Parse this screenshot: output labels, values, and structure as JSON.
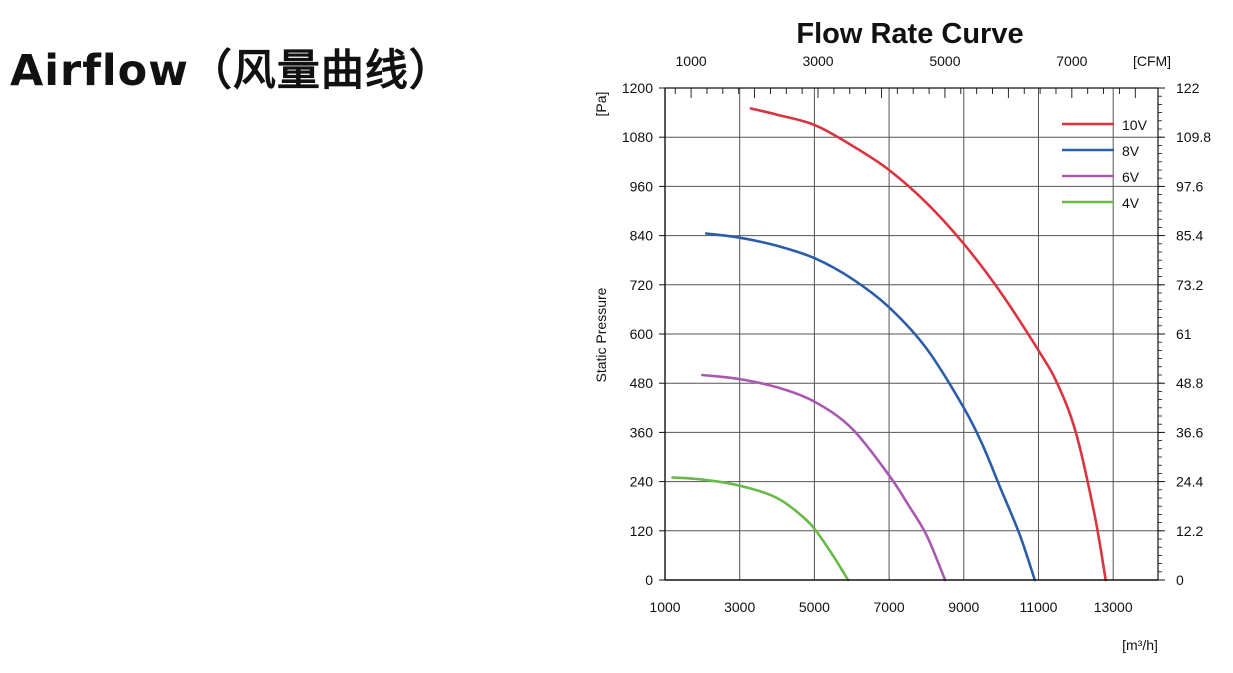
{
  "page": {
    "heading": "Airflow（风量曲线）"
  },
  "chart_data": {
    "type": "line",
    "title": "Flow Rate Curve",
    "ylabel": "Static Pressure",
    "y_unit": "[Pa]",
    "x_unit": "[m³/h]",
    "top_axis_unit": "[CFM]",
    "xlim": [
      1000,
      14200
    ],
    "ylim": [
      0,
      1200
    ],
    "x_ticks": [
      "1000",
      "3000",
      "5000",
      "7000",
      "9000",
      "11000",
      "13000"
    ],
    "y_ticks": [
      "0",
      "120",
      "240",
      "360",
      "480",
      "600",
      "720",
      "840",
      "960",
      "1080",
      "1200"
    ],
    "top_ticks": [
      "1000",
      "3000",
      "5000",
      "7000"
    ],
    "right_ticks": [
      "0",
      "12.2",
      "24.4",
      "36.6",
      "48.8",
      "61",
      "73.2",
      "85.4",
      "97.6",
      "109.8",
      "122"
    ],
    "grid": true,
    "legend_position": "top-right",
    "series": [
      {
        "name": "10V",
        "color": "#d9343f",
        "points": [
          [
            3300,
            1150
          ],
          [
            4000,
            1135
          ],
          [
            5000,
            1110
          ],
          [
            6000,
            1060
          ],
          [
            7000,
            1000
          ],
          [
            8000,
            920
          ],
          [
            9000,
            820
          ],
          [
            10000,
            700
          ],
          [
            11000,
            560
          ],
          [
            11500,
            480
          ],
          [
            12000,
            360
          ],
          [
            12500,
            160
          ],
          [
            12800,
            0
          ]
        ]
      },
      {
        "name": "8V",
        "color": "#2b5ea8",
        "points": [
          [
            2100,
            845
          ],
          [
            3000,
            835
          ],
          [
            4000,
            815
          ],
          [
            5000,
            785
          ],
          [
            6000,
            735
          ],
          [
            7000,
            665
          ],
          [
            8000,
            565
          ],
          [
            9000,
            420
          ],
          [
            9500,
            330
          ],
          [
            10000,
            220
          ],
          [
            10500,
            110
          ],
          [
            10900,
            0
          ]
        ]
      },
      {
        "name": "6V",
        "color": "#a85ab0",
        "points": [
          [
            2000,
            500
          ],
          [
            3000,
            490
          ],
          [
            4000,
            470
          ],
          [
            5000,
            435
          ],
          [
            6000,
            370
          ],
          [
            7000,
            255
          ],
          [
            7500,
            185
          ],
          [
            8000,
            110
          ],
          [
            8500,
            0
          ]
        ]
      },
      {
        "name": "4V",
        "color": "#69b84a",
        "points": [
          [
            1200,
            250
          ],
          [
            2000,
            245
          ],
          [
            3000,
            230
          ],
          [
            4000,
            200
          ],
          [
            4800,
            145
          ],
          [
            5200,
            100
          ],
          [
            5600,
            45
          ],
          [
            5900,
            0
          ]
        ]
      }
    ]
  }
}
